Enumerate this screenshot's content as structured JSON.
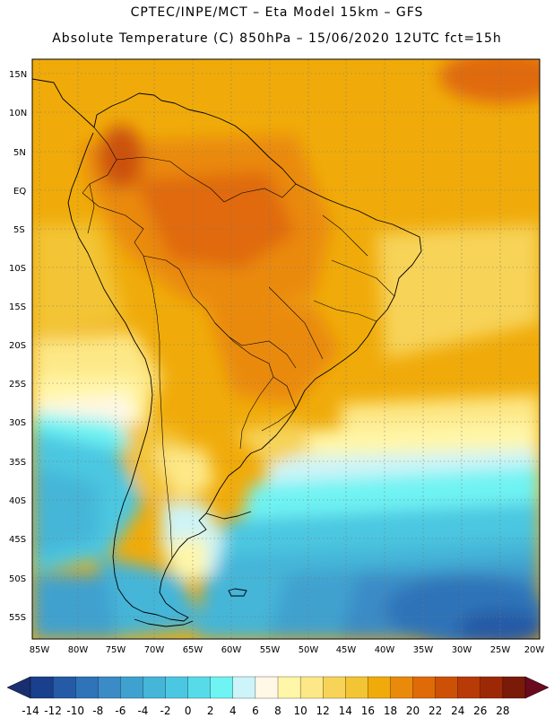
{
  "header": {
    "line1": "CPTEC/INPE/MCT –  Eta Model 15km – GFS",
    "line2": "Absolute Temperature (C) 850hPa – 15/06/2020 12UTC fct=15h"
  },
  "map": {
    "lat_labels": [
      "15N",
      "10N",
      "5N",
      "EQ",
      "5S",
      "10S",
      "15S",
      "20S",
      "25S",
      "30S",
      "35S",
      "40S",
      "45S",
      "50S",
      "55S"
    ],
    "lon_labels": [
      "85W",
      "80W",
      "75W",
      "70W",
      "65W",
      "60W",
      "55W",
      "50W",
      "45W",
      "40W",
      "35W",
      "30W",
      "25W",
      "20W"
    ]
  },
  "colorbar": {
    "labels": [
      "-14",
      "-12",
      "-10",
      "-8",
      "-6",
      "-4",
      "-2",
      "0",
      "2",
      "4",
      "6",
      "8",
      "10",
      "12",
      "14",
      "16",
      "18",
      "20",
      "22",
      "24",
      "26",
      "28"
    ],
    "colors": [
      "#1a3f8c",
      "#255aa6",
      "#2f73b8",
      "#3b8bc6",
      "#3fa1cf",
      "#45b5d8",
      "#4cc7e1",
      "#58dbe8",
      "#6ff3f3",
      "#cdf4f8",
      "#fff8e6",
      "#fff6a8",
      "#fde887",
      "#f7d358",
      "#f3c434",
      "#f0ab0a",
      "#ea8a0b",
      "#e06a08",
      "#cc5107",
      "#b83a06",
      "#9d2805",
      "#7a1a08"
    ],
    "end_low": "#1a2f70",
    "end_high": "#6a0a1f"
  }
}
